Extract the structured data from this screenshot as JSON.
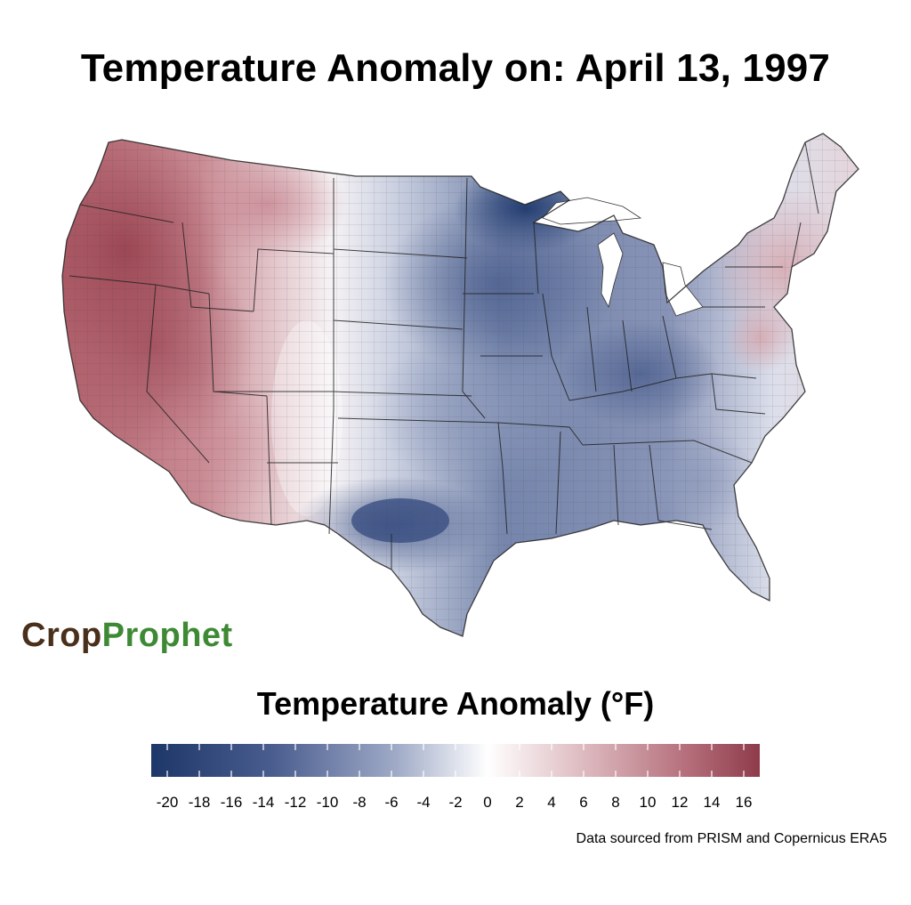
{
  "title": "Temperature Anomaly on: April 13, 1997",
  "logo": {
    "part1": "Crop",
    "part2": "Prophet",
    "colors": {
      "crop": "#4a2f1b",
      "prophet": "#3e8a34"
    }
  },
  "legend": {
    "title": "Temperature Anomaly (°F)",
    "min": -21,
    "max": 17,
    "ticks": [
      -20,
      -18,
      -16,
      -14,
      -12,
      -10,
      -8,
      -6,
      -4,
      -2,
      0,
      2,
      4,
      6,
      8,
      10,
      12,
      14,
      16
    ],
    "colors": {
      "cold": "#1d3768",
      "neutral": "#ffffff",
      "warm": "#8e3b4a"
    }
  },
  "source": "Data sourced from PRISM and Copernicus ERA5",
  "map": {
    "region": "Contiguous United States",
    "anomaly_regions": [
      {
        "area": "Pacific Northwest / Oregon",
        "anomaly": 15
      },
      {
        "area": "California / Nevada",
        "anomaly": 10
      },
      {
        "area": "Northern Rockies",
        "anomaly": 6
      },
      {
        "area": "Southwest",
        "anomaly": 4
      },
      {
        "area": "Front Range / High Plains",
        "anomaly": 0
      },
      {
        "area": "Northern Minnesota",
        "anomaly": -20
      },
      {
        "area": "Upper Midwest",
        "anomaly": -13
      },
      {
        "area": "Ohio Valley",
        "anomaly": -12
      },
      {
        "area": "Texas / Oklahoma",
        "anomaly": -13
      },
      {
        "area": "Southeast",
        "anomaly": -6
      },
      {
        "area": "Mid-Atlantic",
        "anomaly": 3
      },
      {
        "area": "New England",
        "anomaly": 4
      }
    ]
  }
}
